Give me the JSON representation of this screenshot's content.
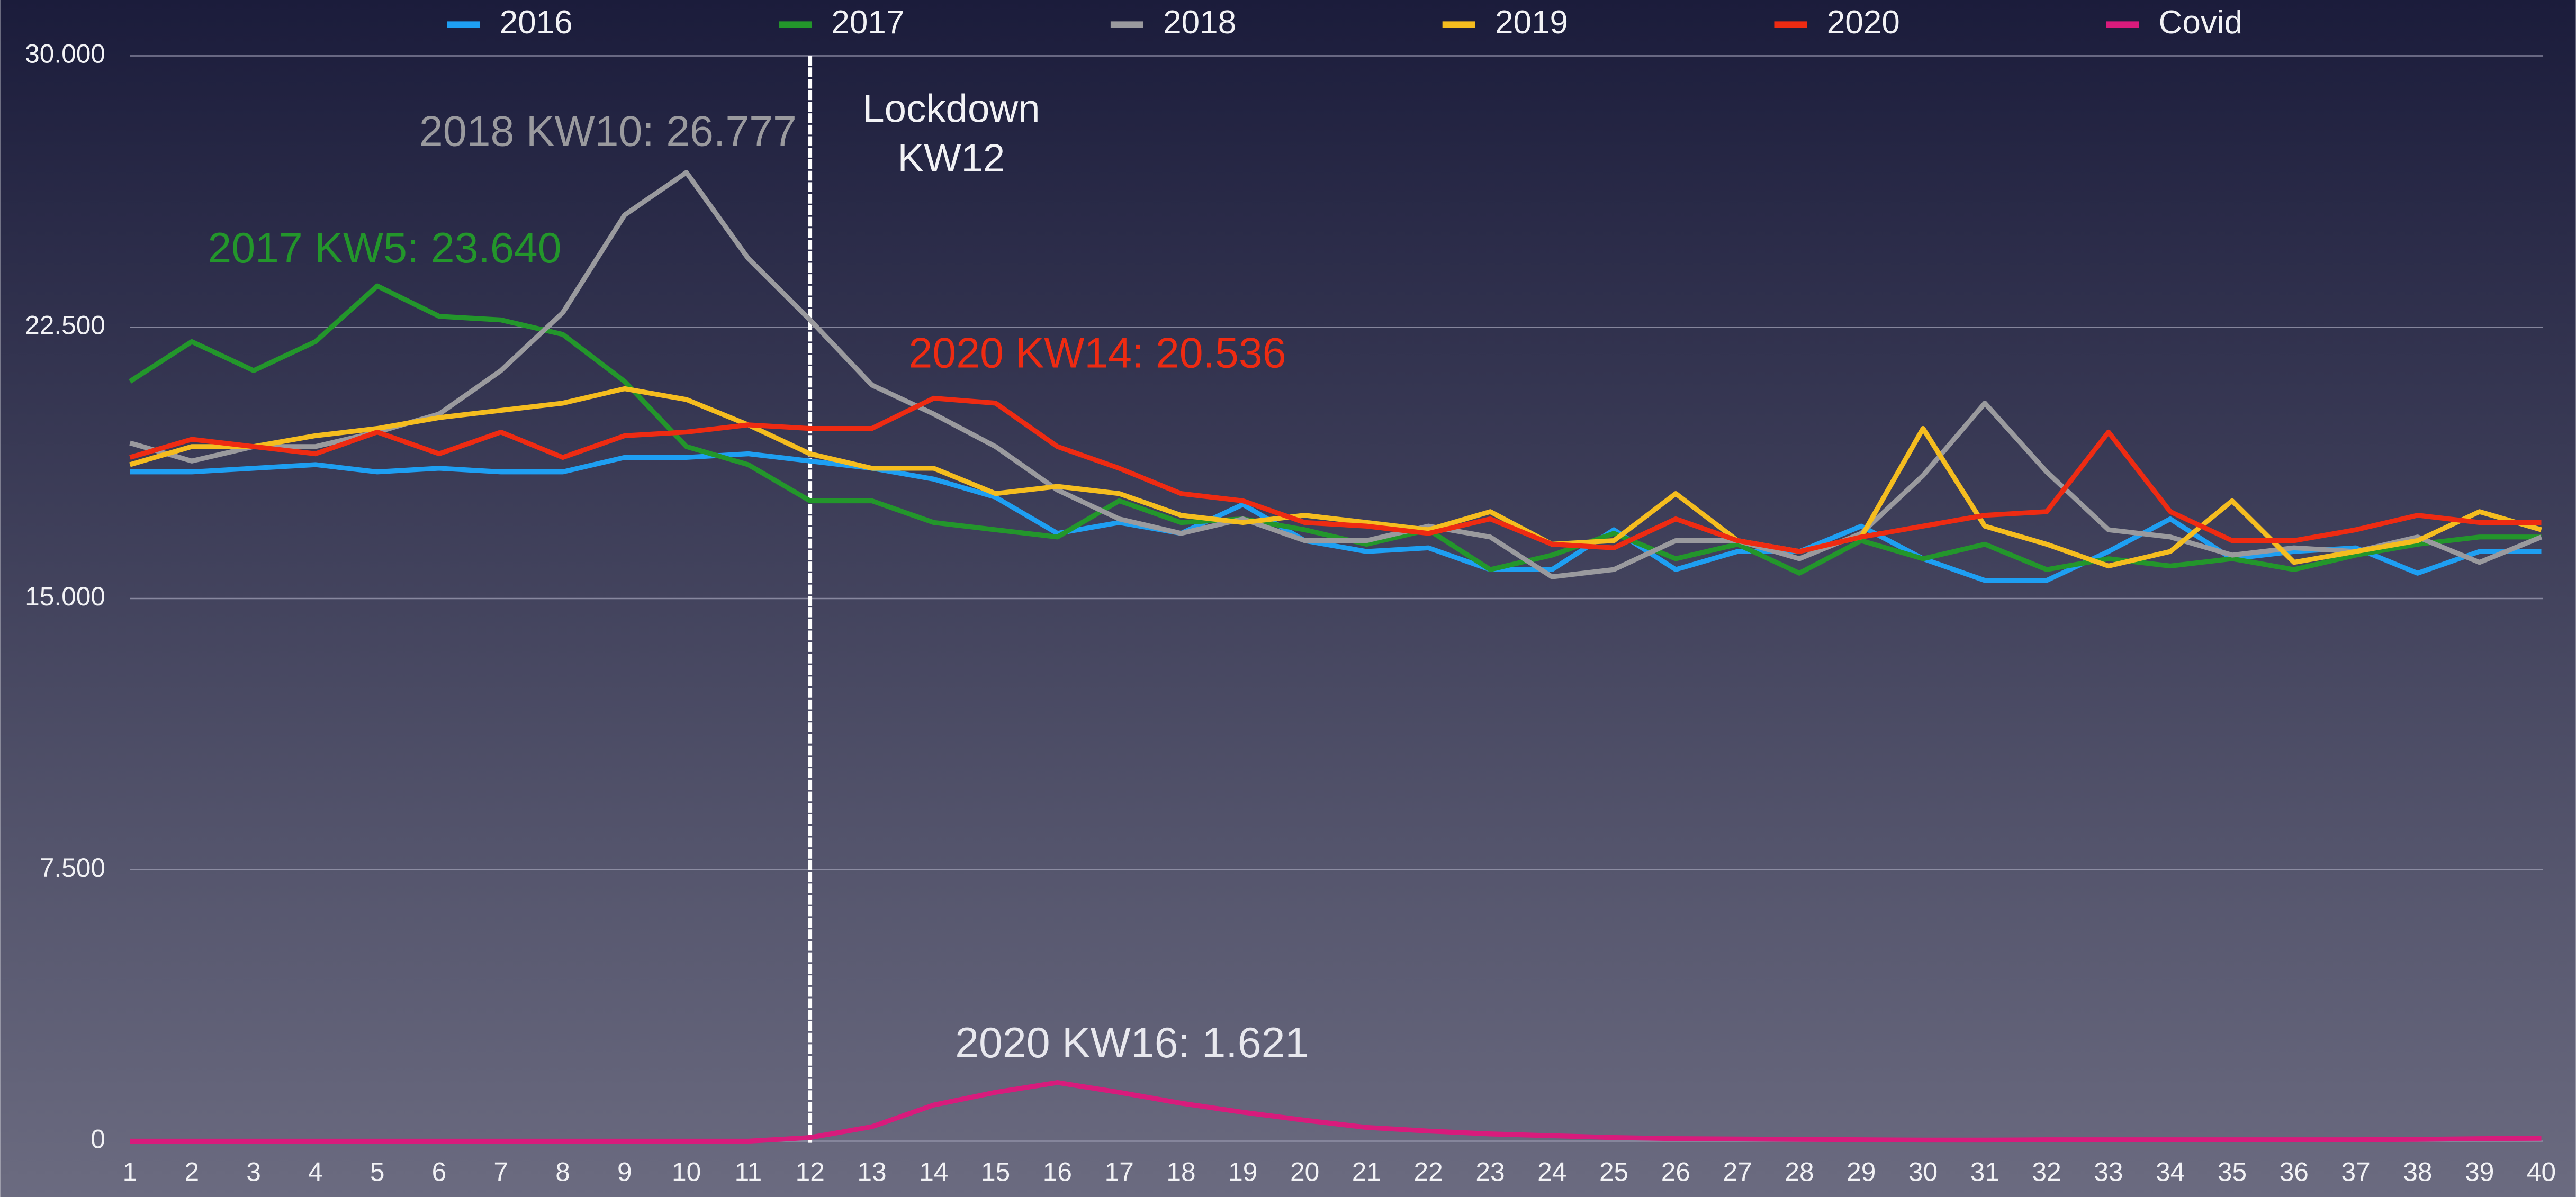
{
  "chart_data": {
    "type": "line",
    "categories": [
      "1",
      "2",
      "3",
      "4",
      "5",
      "6",
      "7",
      "8",
      "9",
      "10",
      "11",
      "12",
      "13",
      "14",
      "15",
      "16",
      "17",
      "18",
      "19",
      "20",
      "21",
      "22",
      "23",
      "24",
      "25",
      "26",
      "27",
      "28",
      "29",
      "30",
      "31",
      "32",
      "33",
      "34",
      "35",
      "36",
      "37",
      "38",
      "39",
      "40"
    ],
    "ylim": [
      0,
      30000
    ],
    "yticks": [
      0,
      {
        "value": 7500,
        "label": "7.500"
      },
      {
        "value": 15000,
        "label": "15.000"
      },
      {
        "value": 22500,
        "label": "22.500"
      },
      {
        "value": 30000,
        "label": "30.000"
      }
    ],
    "grid": true,
    "legend": "top",
    "series": [
      {
        "name": "2016",
        "color": "#1e9ff2",
        "values": [
          18500,
          18500,
          18600,
          18700,
          18500,
          18600,
          18500,
          18500,
          18900,
          18900,
          19000,
          18800,
          18600,
          18300,
          17800,
          16800,
          17100,
          16800,
          17600,
          16600,
          16300,
          16400,
          15800,
          15800,
          16900,
          15800,
          16300,
          16300,
          17000,
          16100,
          15500,
          15500,
          16300,
          17200,
          16100,
          16300,
          16400,
          15700,
          16300,
          16300
        ]
      },
      {
        "name": "2017",
        "color": "#23962b",
        "values": [
          21000,
          22100,
          21300,
          22100,
          23640,
          22800,
          22700,
          22300,
          21000,
          19200,
          18700,
          17700,
          17700,
          17100,
          16900,
          16700,
          17700,
          17100,
          17200,
          16900,
          16500,
          16900,
          15800,
          16200,
          16800,
          16100,
          16500,
          15700,
          16600,
          16100,
          16500,
          15800,
          16100,
          15900,
          16100,
          15800,
          16200,
          16500,
          16700,
          16700
        ]
      },
      {
        "name": "2018",
        "color": "#9a9a9e",
        "values": [
          19300,
          18800,
          19200,
          19200,
          19600,
          20100,
          21300,
          22900,
          25600,
          26777,
          24400,
          22700,
          20900,
          20100,
          19200,
          18000,
          17200,
          16800,
          17200,
          16600,
          16600,
          17000,
          16700,
          15600,
          15800,
          16600,
          16600,
          16100,
          16800,
          18400,
          20400,
          18500,
          16900,
          16700,
          16200,
          16400,
          16300,
          16700,
          16000,
          16700
        ]
      },
      {
        "name": "2019",
        "color": "#f5bd1f",
        "values": [
          18700,
          19200,
          19200,
          19500,
          19700,
          20000,
          20200,
          20400,
          20800,
          20500,
          19800,
          19000,
          18600,
          18600,
          17900,
          18100,
          17900,
          17300,
          17100,
          17300,
          17100,
          16900,
          17400,
          16500,
          16600,
          17900,
          16600,
          16300,
          16700,
          19700,
          17000,
          16500,
          15900,
          16300,
          17700,
          16000,
          16300,
          16600,
          17400,
          16900
        ]
      },
      {
        "name": "2020",
        "color": "#ee2b12",
        "values": [
          18900,
          19400,
          19200,
          19000,
          19600,
          19000,
          19600,
          18900,
          19500,
          19600,
          19800,
          19700,
          19700,
          20536,
          20400,
          19200,
          18600,
          17900,
          17700,
          17100,
          17000,
          16800,
          17200,
          16500,
          16400,
          17200,
          16600,
          16300,
          16700,
          17000,
          17300,
          17400,
          19600,
          17400,
          16600,
          16600,
          16900,
          17300,
          17100,
          17100
        ]
      },
      {
        "name": "Covid",
        "color": "#d81b7c",
        "values": [
          0,
          0,
          0,
          0,
          0,
          0,
          0,
          0,
          0,
          0,
          0,
          100,
          400,
          1000,
          1350,
          1621,
          1350,
          1050,
          800,
          580,
          380,
          280,
          200,
          150,
          100,
          70,
          60,
          50,
          40,
          30,
          30,
          40,
          40,
          40,
          40,
          40,
          40,
          50,
          70,
          80
        ]
      }
    ],
    "annotations": [
      {
        "text": "2018 KW10: 26.777",
        "color": "#9a9a9e"
      },
      {
        "text": "2017 KW5: 23.640",
        "color": "#23962b"
      },
      {
        "text": "2020 KW14: 20.536",
        "color": "#ee2b12"
      },
      {
        "text": "2020 KW16: 1.621",
        "color": "#e8e8ee"
      }
    ],
    "vline": {
      "x": 12,
      "label": [
        "Lockdown",
        "KW12"
      ]
    }
  }
}
